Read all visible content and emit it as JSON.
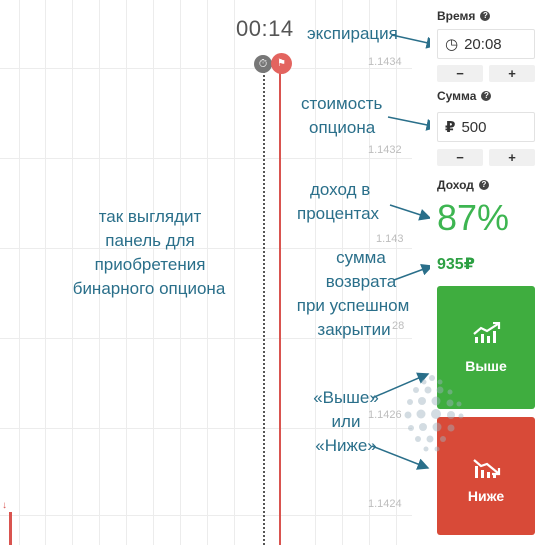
{
  "chart": {
    "timer": "00:14",
    "price_labels": [
      "1.1434",
      "1.1432",
      "1.143",
      "28",
      "1.1426",
      "1.1424"
    ]
  },
  "panel": {
    "time_label": "Время",
    "time_value": "20:08",
    "minus": "−",
    "plus": "+",
    "amount_label": "Сумма",
    "amount_currency": "₽",
    "amount_value": "500",
    "income_label": "Доход",
    "income_percent": "87%",
    "payout": "935₽",
    "up_label": "Выше",
    "down_label": "Ниже",
    "help": "?"
  },
  "annotations": {
    "expiration": "экспирация",
    "option_cost_1": "стоимость",
    "option_cost_2": "опциона",
    "income_1": "доход в",
    "income_2": "процентах",
    "panel_1": "так выглядит",
    "panel_2": "панель для",
    "panel_3": "приобретения",
    "panel_4": "бинарного опциона",
    "return_1": "сумма",
    "return_2": "возврата",
    "return_3": "при успешном",
    "return_4": "закрытии",
    "updown_1": "«Выше»",
    "updown_2": "или",
    "updown_3": "«Ниже»"
  },
  "colors": {
    "up": "#3fad3f",
    "down": "#d84a38",
    "income": "#3db551",
    "annotation": "#2a6f8a"
  }
}
